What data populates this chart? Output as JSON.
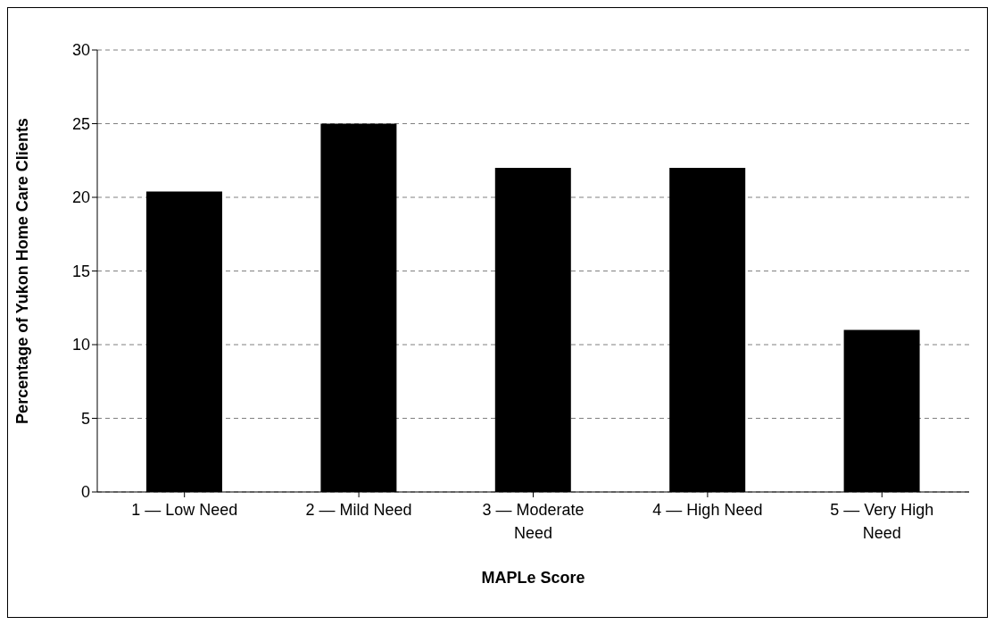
{
  "chart_data": {
    "type": "bar",
    "xlabel": "MAPLe Score",
    "ylabel": "Percentage of Yukon Home Care Clients",
    "categories": [
      "1 — Low Need",
      "2 — Mild Need",
      "3 — Moderate Need",
      "4 — High Need",
      "5 — Very High Need"
    ],
    "values": [
      20.4,
      25,
      22,
      22,
      11
    ],
    "color": "#000000",
    "ylim": [
      0,
      30
    ],
    "yticks": [
      0,
      5,
      10,
      15,
      20,
      25,
      30
    ],
    "grid": "y"
  }
}
